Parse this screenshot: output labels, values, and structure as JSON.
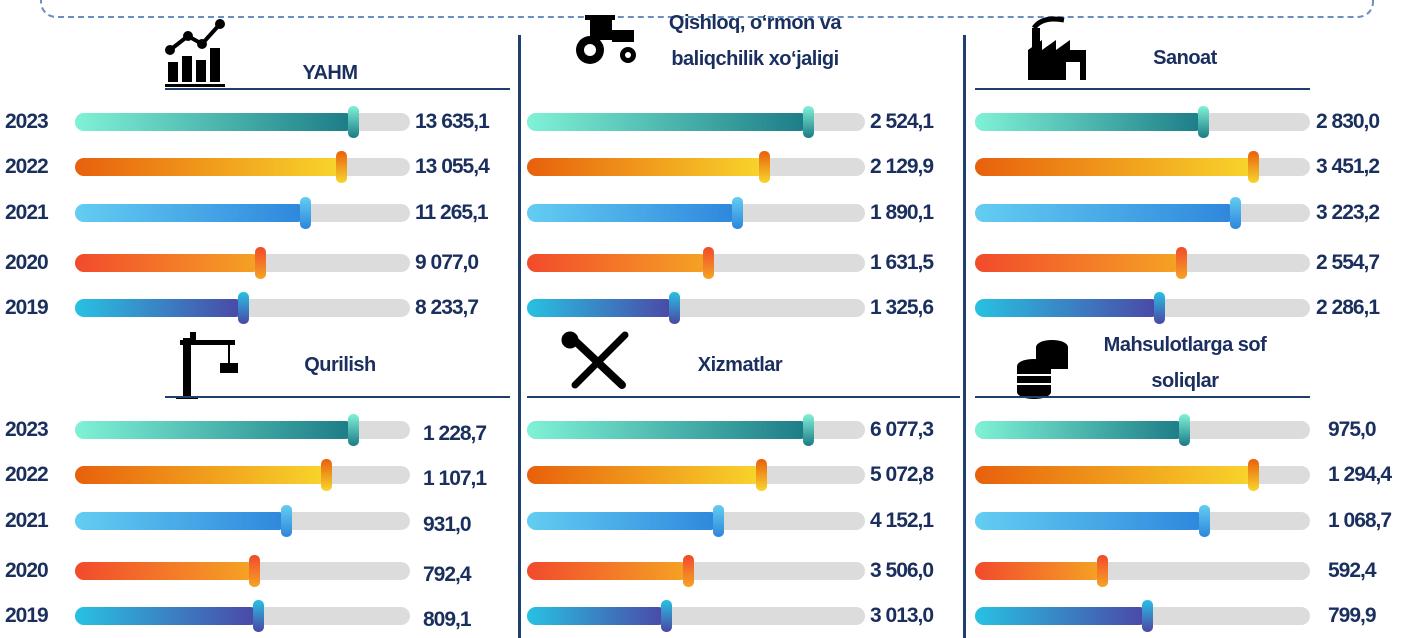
{
  "chart_data": [
    {
      "type": "bar",
      "title": "YAHM",
      "categories": [
        "2023",
        "2022",
        "2021",
        "2020",
        "2019"
      ],
      "values": [
        13635.1,
        13055.4,
        11265.1,
        9077.0,
        8233.7
      ],
      "value_labels": [
        "13 635,1",
        "13 055,4",
        "11 265,1",
        "9 077,0",
        "8 233,7"
      ],
      "colors": [
        [
          "#80f2d6",
          "#1b7b86"
        ],
        [
          "#e8600c",
          "#f8d62c"
        ],
        [
          "#63cdf2",
          "#2e86dc"
        ],
        [
          "#f24a2c",
          "#f5a424"
        ],
        [
          "#28c1e2",
          "#4b46a6"
        ]
      ]
    },
    {
      "type": "bar",
      "title": "Qishloq, o‘rmon va baliqchilik xo‘jaligi",
      "values": [
        2524.1,
        2129.9,
        1890.1,
        1631.5,
        1325.6
      ],
      "value_labels": [
        "2 524,1",
        "2 129,9",
        "1 890,1",
        "1 631,5",
        "1 325,6"
      ],
      "colors": [
        [
          "#80f2d6",
          "#1b7b86"
        ],
        [
          "#e8600c",
          "#f8d62c"
        ],
        [
          "#63cdf2",
          "#2e86dc"
        ],
        [
          "#f24a2c",
          "#f5a424"
        ],
        [
          "#28c1e2",
          "#4b46a6"
        ]
      ]
    },
    {
      "type": "bar",
      "title": "Sanoat",
      "values": [
        2830.0,
        3451.2,
        3223.2,
        2554.7,
        2286.1
      ],
      "value_labels": [
        "2 830,0",
        "3 451,2",
        "3 223,2",
        "2 554,7",
        "2 286,1"
      ],
      "colors": [
        [
          "#80f2d6",
          "#1b7b86"
        ],
        [
          "#e8600c",
          "#f8d62c"
        ],
        [
          "#63cdf2",
          "#2e86dc"
        ],
        [
          "#f24a2c",
          "#f5a424"
        ],
        [
          "#28c1e2",
          "#4b46a6"
        ]
      ]
    },
    {
      "type": "bar",
      "title": "Qurilish",
      "categories": [
        "2023",
        "2022",
        "2021",
        "2020",
        "2019"
      ],
      "values": [
        1228.7,
        1107.1,
        931.0,
        792.4,
        809.1
      ],
      "value_labels": [
        "1 228,7",
        "1 107,1",
        "931,0",
        "792,4",
        "809,1"
      ],
      "colors": [
        [
          "#80f2d6",
          "#1b7b86"
        ],
        [
          "#e8600c",
          "#f8d62c"
        ],
        [
          "#63cdf2",
          "#2e86dc"
        ],
        [
          "#f24a2c",
          "#f5a424"
        ],
        [
          "#28c1e2",
          "#4b46a6"
        ]
      ]
    },
    {
      "type": "bar",
      "title": "Xizmatlar",
      "values": [
        6077.3,
        5072.8,
        4152.1,
        3506.0,
        3013.0
      ],
      "value_labels": [
        "6 077,3",
        "5 072,8",
        "4 152,1",
        "3 506,0",
        "3 013,0"
      ],
      "colors": [
        [
          "#80f2d6",
          "#1b7b86"
        ],
        [
          "#e8600c",
          "#f8d62c"
        ],
        [
          "#63cdf2",
          "#2e86dc"
        ],
        [
          "#f24a2c",
          "#f5a424"
        ],
        [
          "#28c1e2",
          "#4b46a6"
        ]
      ]
    },
    {
      "type": "bar",
      "title": "Mahsulotlarga sof soliqlar",
      "values": [
        975.0,
        1294.4,
        1068.7,
        592.4,
        799.9
      ],
      "value_labels": [
        "975,0",
        "1 294,4",
        "1 068,7",
        "592,4",
        "799,9"
      ],
      "colors": [
        [
          "#80f2d6",
          "#1b7b86"
        ],
        [
          "#e8600c",
          "#f8d62c"
        ],
        [
          "#63cdf2",
          "#2e86dc"
        ],
        [
          "#f24a2c",
          "#f5a424"
        ],
        [
          "#28c1e2",
          "#4b46a6"
        ]
      ]
    }
  ]
}
